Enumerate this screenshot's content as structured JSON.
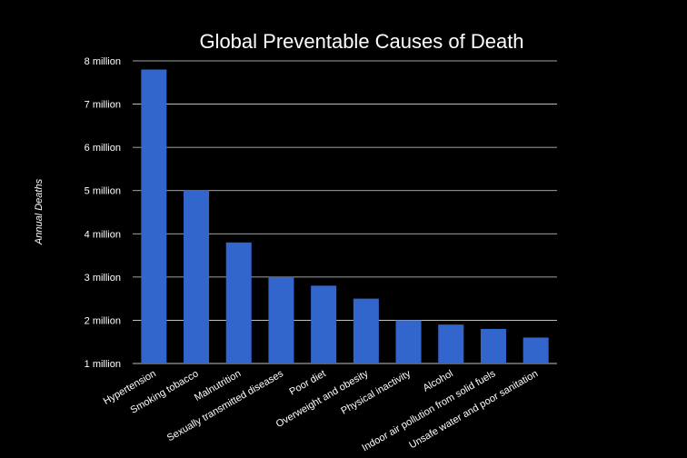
{
  "chart_data": {
    "type": "bar",
    "title": "Global Preventable Causes of Death",
    "xlabel": "",
    "ylabel": "Annual Deaths",
    "ylim": [
      1000000,
      8000000
    ],
    "y_ticks": [
      {
        "value": 1000000,
        "label": "1 million"
      },
      {
        "value": 2000000,
        "label": "2 million"
      },
      {
        "value": 3000000,
        "label": "3 million"
      },
      {
        "value": 4000000,
        "label": "4 million"
      },
      {
        "value": 5000000,
        "label": "5 million"
      },
      {
        "value": 6000000,
        "label": "6 million"
      },
      {
        "value": 7000000,
        "label": "7 million"
      },
      {
        "value": 8000000,
        "label": "8 million"
      }
    ],
    "grid": true,
    "legend": "none",
    "bar_color": "#3366cc",
    "categories": [
      "Hypertension",
      "Smoking tobacco",
      "Malnutrition",
      "Sexually transmitted diseases",
      "Poor diet",
      "Overweight and obesity",
      "Physical inactivity",
      "Alcohol",
      "Indoor air pollution from solid fuels",
      "Unsafe water and poor sanitation"
    ],
    "values": [
      7800000,
      5000000,
      3800000,
      3000000,
      2800000,
      2500000,
      2000000,
      1900000,
      1800000,
      1600000
    ]
  }
}
